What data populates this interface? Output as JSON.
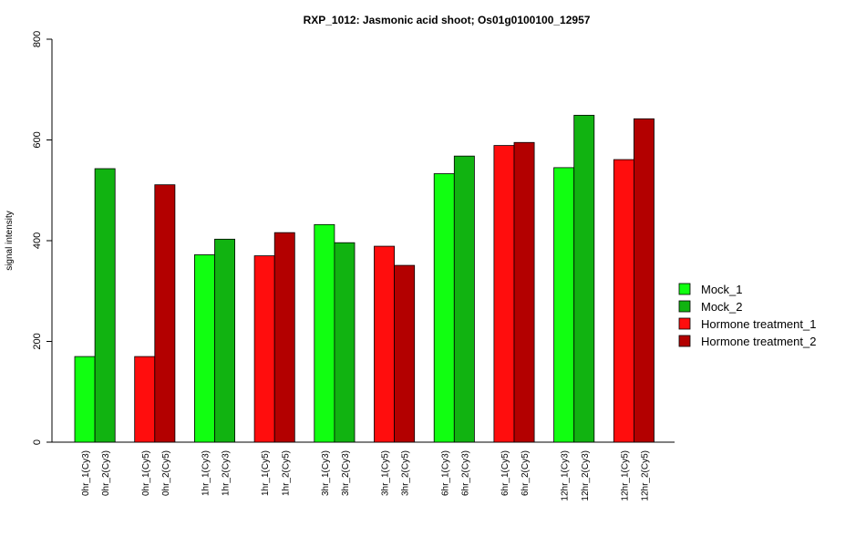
{
  "chart_data": {
    "type": "bar",
    "title": "RXP_1012: Jasmonic acid shoot; Os01g0100100_12957",
    "xlabel": "",
    "ylabel": "signal intensity",
    "ylim": [
      0,
      800
    ],
    "yticks": [
      0,
      200,
      400,
      600,
      800
    ],
    "grid": false,
    "legend_position": "right",
    "series": [
      {
        "name": "Mock_1",
        "color": "#11ff11"
      },
      {
        "name": "Mock_2",
        "color": "#11b311"
      },
      {
        "name": "Hormone treatment_1",
        "color": "#ff0d0d"
      },
      {
        "name": "Hormone treatment_2",
        "color": "#b30000"
      }
    ],
    "bars": [
      {
        "label": "0hr_1(Cy3)",
        "value": 170,
        "series": "Mock_1"
      },
      {
        "label": "0hr_2(Cy3)",
        "value": 543,
        "series": "Mock_2"
      },
      {
        "label": "0hr_1(Cy5)",
        "value": 170,
        "series": "Hormone treatment_1"
      },
      {
        "label": "0hr_2(Cy5)",
        "value": 511,
        "series": "Hormone treatment_2"
      },
      {
        "label": "1hr_1(Cy3)",
        "value": 372,
        "series": "Mock_1"
      },
      {
        "label": "1hr_2(Cy3)",
        "value": 403,
        "series": "Mock_2"
      },
      {
        "label": "1hr_1(Cy5)",
        "value": 370,
        "series": "Hormone treatment_1"
      },
      {
        "label": "1hr_2(Cy5)",
        "value": 416,
        "series": "Hormone treatment_2"
      },
      {
        "label": "3hr_1(Cy3)",
        "value": 432,
        "series": "Mock_1"
      },
      {
        "label": "3hr_2(Cy3)",
        "value": 396,
        "series": "Mock_2"
      },
      {
        "label": "3hr_1(Cy5)",
        "value": 389,
        "series": "Hormone treatment_1"
      },
      {
        "label": "3hr_2(Cy5)",
        "value": 351,
        "series": "Hormone treatment_2"
      },
      {
        "label": "6hr_1(Cy3)",
        "value": 533,
        "series": "Mock_1"
      },
      {
        "label": "6hr_2(Cy3)",
        "value": 568,
        "series": "Mock_2"
      },
      {
        "label": "6hr_1(Cy5)",
        "value": 589,
        "series": "Hormone treatment_1"
      },
      {
        "label": "6hr_2(Cy5)",
        "value": 595,
        "series": "Hormone treatment_2"
      },
      {
        "label": "12hr_1(Cy3)",
        "value": 545,
        "series": "Mock_1"
      },
      {
        "label": "12hr_2(Cy3)",
        "value": 649,
        "series": "Mock_2"
      },
      {
        "label": "12hr_1(Cy5)",
        "value": 561,
        "series": "Hormone treatment_1"
      },
      {
        "label": "12hr_2(Cy5)",
        "value": 642,
        "series": "Hormone treatment_2"
      }
    ]
  }
}
